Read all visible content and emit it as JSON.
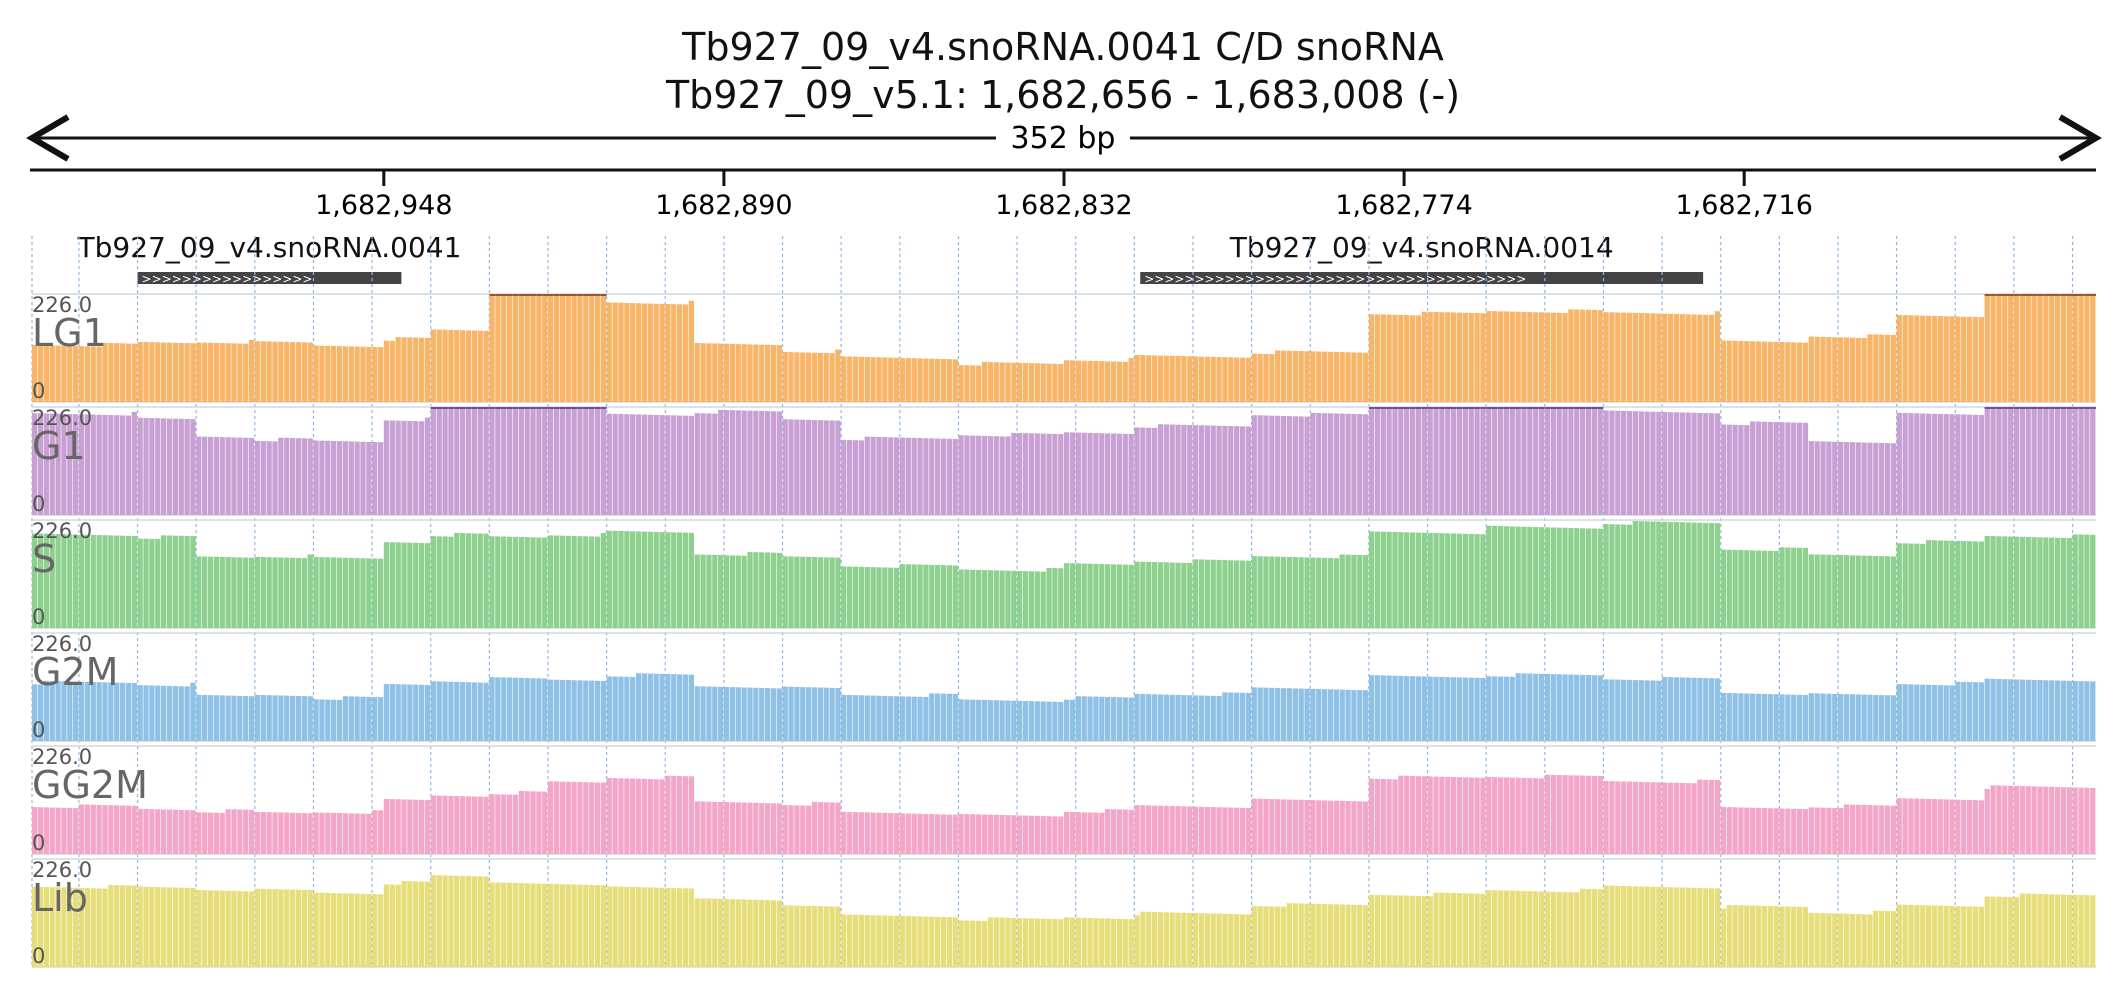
{
  "header": {
    "title": "Tb927_09_v4.snoRNA.0041  C/D snoRNA",
    "location": "Tb927_09_v5.1: 1,682,656 - 1,683,008 (-)",
    "span": "352 bp"
  },
  "features": [
    {
      "label": "Tb927_09_v4.snoRNA.0041",
      "strand": ">",
      "start": 1682990,
      "end": 1682945
    },
    {
      "label": "Tb927_09_v4.snoRNA.0014",
      "strand": ">",
      "start": 1682819,
      "end": 1682723
    }
  ],
  "chart_data": {
    "type": "area",
    "x_axis": {
      "start": 1683008,
      "end": 1682656,
      "reversed": true,
      "ticks": [
        "1,682,948",
        "1,682,890",
        "1,682,832",
        "1,682,774",
        "1,682,716"
      ],
      "tick_values": [
        1682948,
        1682890,
        1682832,
        1682774,
        1682716
      ]
    },
    "ylim": [
      0,
      226
    ],
    "y_max_label": "226.0",
    "y_min_label": "0",
    "breakpoints": [
      1683008,
      1682990,
      1682980,
      1682970,
      1682960,
      1682948,
      1682940,
      1682930,
      1682920,
      1682910,
      1682895,
      1682880,
      1682870,
      1682850,
      1682832,
      1682820,
      1682800,
      1682780,
      1682760,
      1682740,
      1682720,
      1682705,
      1682690,
      1682675,
      1682656
    ],
    "series": [
      {
        "name": "LG1",
        "color": "#f8b568",
        "clip": "#a0522d",
        "values": [
          120,
          124,
          126,
          124,
          118,
          132,
          150,
          226,
          226,
          208,
          120,
          106,
          92,
          80,
          88,
          95,
          104,
          185,
          190,
          186,
          125,
          138,
          180,
          226
        ]
      },
      {
        "name": "G1",
        "color": "#c9a0d4",
        "clip": "#7a4e8c",
        "values": [
          212,
          200,
          164,
          158,
          154,
          200,
          226,
          226,
          226,
          210,
          216,
          200,
          160,
          168,
          172,
          186,
          210,
          226,
          226,
          215,
          192,
          154,
          210,
          226
        ]
      },
      {
        "name": "S",
        "color": "#8ed08e",
        "clip": "#2e7d32",
        "values": [
          195,
          190,
          148,
          150,
          145,
          180,
          195,
          190,
          195,
          200,
          155,
          148,
          130,
          122,
          133,
          140,
          150,
          200,
          210,
          220,
          165,
          152,
          180,
          192
        ]
      },
      {
        "name": "G2M",
        "color": "#8fc0e6",
        "clip": "#1f5f99",
        "values": [
          122,
          118,
          93,
          96,
          90,
          118,
          126,
          130,
          128,
          138,
          114,
          110,
          96,
          85,
          90,
          98,
          110,
          134,
          138,
          130,
          100,
          96,
          120,
          128
        ]
      },
      {
        "name": "GG2M",
        "color": "#f4a6c8",
        "clip": "#9b2d5e",
        "values": [
          100,
          94,
          90,
          86,
          88,
          112,
          122,
          128,
          150,
          160,
          108,
          105,
          86,
          80,
          90,
          100,
          112,
          160,
          162,
          152,
          96,
          100,
          116,
          140
        ]
      },
      {
        "name": "Lib",
        "color": "#e6de7a",
        "clip": "#8a7f1e",
        "values": [
          168,
          166,
          162,
          160,
          155,
          176,
          190,
          178,
          170,
          168,
          140,
          130,
          106,
          100,
          104,
          112,
          130,
          152,
          160,
          168,
          126,
          114,
          128,
          150
        ]
      }
    ]
  }
}
